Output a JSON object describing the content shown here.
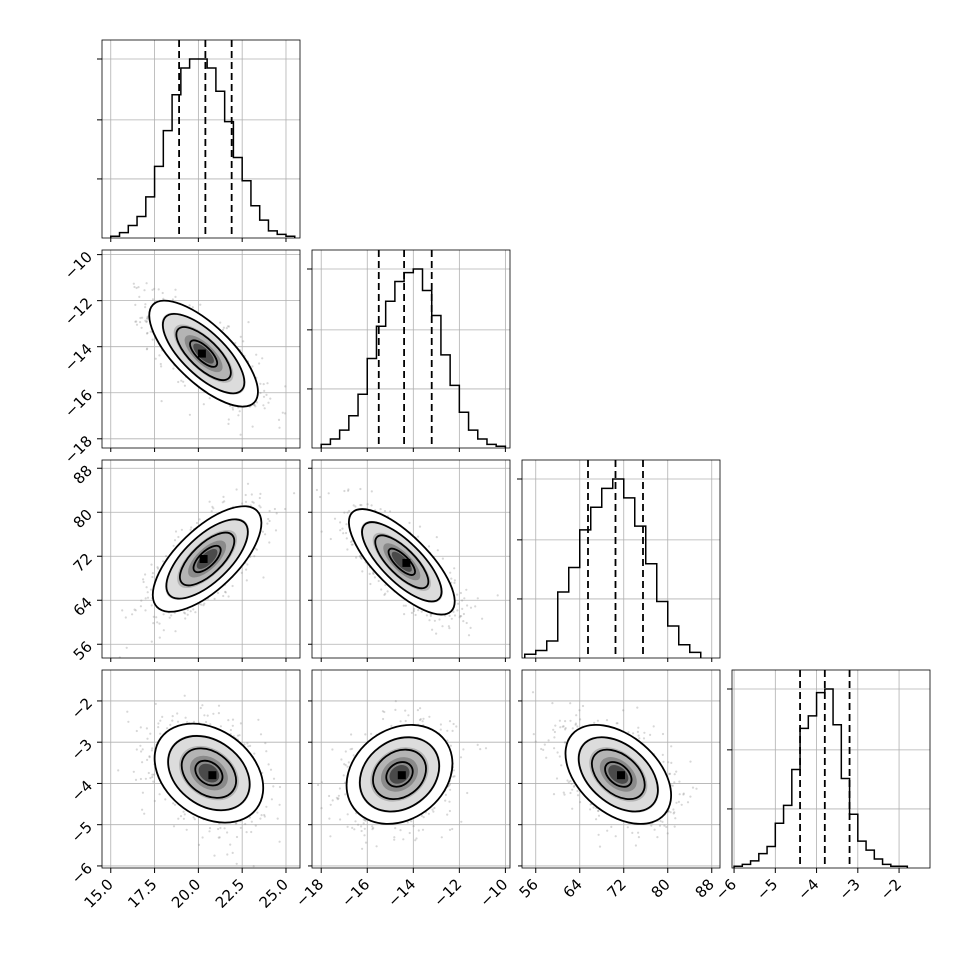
{
  "chart_data": {
    "type": "corner",
    "title": "",
    "parameters": [
      {
        "label": "",
        "range": [
          14.5,
          25.8
        ],
        "ticks": [
          "15.0",
          "17.5",
          "20.0",
          "22.5",
          "25.0"
        ],
        "tick_values": [
          15.0,
          17.5,
          20.0,
          22.5,
          25.0
        ],
        "quantiles": [
          18.9,
          20.4,
          21.9
        ]
      },
      {
        "label": "",
        "range": [
          -18.4,
          -9.8
        ],
        "ticks": [
          "−18",
          "−16",
          "−14",
          "−12",
          "−10"
        ],
        "tick_values": [
          -18,
          -16,
          -14,
          -12,
          -10
        ],
        "quantiles": [
          -15.5,
          -14.4,
          -13.2
        ]
      },
      {
        "label": "",
        "range": [
          53.5,
          89.5
        ],
        "ticks": [
          "56",
          "64",
          "72",
          "80",
          "88"
        ],
        "tick_values": [
          56,
          64,
          72,
          80,
          88
        ],
        "quantiles": [
          65.5,
          70.5,
          75.5
        ]
      },
      {
        "label": "",
        "range": [
          -6.05,
          -1.25
        ],
        "ticks": [
          "−6",
          "−5",
          "−4",
          "−3",
          "−2"
        ],
        "tick_values": [
          -6,
          -5,
          -4,
          -3,
          -2
        ],
        "quantiles": [
          -4.4,
          -3.8,
          -3.2
        ]
      }
    ],
    "marginals": [
      {
        "parameter": 0,
        "edges": [
          15.0,
          15.5,
          16.0,
          16.5,
          17.0,
          17.5,
          18.0,
          18.5,
          19.0,
          19.5,
          20.0,
          20.5,
          21.0,
          21.5,
          22.0,
          22.5,
          23.0,
          23.5,
          24.0,
          24.5,
          25.0,
          25.5
        ],
        "counts": [
          1,
          3,
          7,
          12,
          23,
          40,
          60,
          80,
          95,
          100,
          100,
          95,
          82,
          65,
          45,
          32,
          18,
          10,
          4,
          2,
          1
        ]
      },
      {
        "parameter": 1,
        "edges": [
          -18.0,
          -17.6,
          -17.2,
          -16.8,
          -16.4,
          -16.0,
          -15.6,
          -15.2,
          -14.8,
          -14.4,
          -14.0,
          -13.6,
          -13.2,
          -12.8,
          -12.4,
          -12.0,
          -11.6,
          -11.2,
          -10.8,
          -10.4,
          -10.0
        ],
        "counts": [
          2,
          5,
          10,
          18,
          30,
          50,
          68,
          82,
          93,
          98,
          100,
          88,
          74,
          52,
          35,
          20,
          10,
          5,
          2,
          1
        ]
      },
      {
        "parameter": 2,
        "edges": [
          54,
          56,
          58,
          60,
          62,
          64,
          66,
          68,
          70,
          72,
          74,
          76,
          78,
          80,
          82,
          84,
          86
        ],
        "counts": [
          2,
          4,
          9,
          35,
          48,
          68,
          80,
          90,
          95,
          85,
          70,
          50,
          30,
          17,
          7,
          3
        ]
      },
      {
        "parameter": 3,
        "edges": [
          -6.0,
          -5.8,
          -5.6,
          -5.4,
          -5.2,
          -5.0,
          -4.8,
          -4.6,
          -4.4,
          -4.2,
          -4.0,
          -3.8,
          -3.6,
          -3.4,
          -3.2,
          -3.0,
          -2.8,
          -2.6,
          -2.4,
          -2.2,
          -2.0,
          -1.8
        ],
        "counts": [
          1,
          2,
          4,
          8,
          12,
          25,
          35,
          55,
          78,
          85,
          98,
          100,
          80,
          50,
          30,
          15,
          10,
          5,
          2,
          1,
          1
        ]
      }
    ],
    "joint": [
      {
        "x": 0,
        "y": 1,
        "mean": [
          20.3,
          -14.3
        ],
        "sd": [
          1.55,
          1.15
        ],
        "corr": -0.72,
        "peak": [
          20.2,
          -14.3
        ]
      },
      {
        "x": 0,
        "y": 2,
        "mean": [
          20.5,
          71.5
        ],
        "sd": [
          1.55,
          4.8
        ],
        "corr": 0.68,
        "peak": [
          20.3,
          71.5
        ]
      },
      {
        "x": 1,
        "y": 2,
        "mean": [
          -14.5,
          71.0
        ],
        "sd": [
          1.15,
          4.8
        ],
        "corr": -0.75,
        "peak": [
          -14.3,
          70.8
        ]
      },
      {
        "x": 0,
        "y": 3,
        "mean": [
          20.6,
          -3.75
        ],
        "sd": [
          1.55,
          0.6
        ],
        "corr": -0.3,
        "peak": [
          20.8,
          -3.8
        ]
      },
      {
        "x": 1,
        "y": 3,
        "mean": [
          -14.6,
          -3.78
        ],
        "sd": [
          1.15,
          0.6
        ],
        "corr": 0.22,
        "peak": [
          -14.5,
          -3.8
        ]
      },
      {
        "x": 2,
        "y": 3,
        "mean": [
          71.0,
          -3.78
        ],
        "sd": [
          4.8,
          0.6
        ],
        "corr": -0.42,
        "peak": [
          71.5,
          -3.8
        ]
      }
    ],
    "grid": true,
    "legend": "none"
  }
}
